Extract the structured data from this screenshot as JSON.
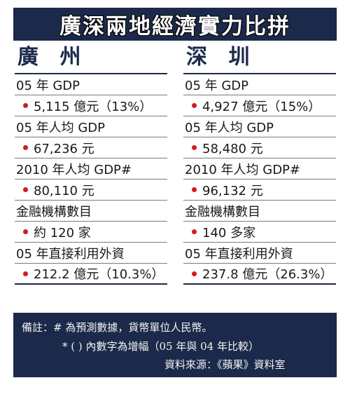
{
  "title": "廣深兩地經濟實力比拼",
  "columns": [
    {
      "city": "廣 州",
      "rows": [
        {
          "label": "05 年 GDP",
          "value": "5,115 億元（13%）"
        },
        {
          "label": "05 年人均 GDP",
          "value": "67,236 元"
        },
        {
          "label": "2010 年人均 GDP#",
          "value": "80,110 元"
        },
        {
          "label": "金融機構數目",
          "value": "約 120 家"
        },
        {
          "label": "05 年直接利用外資",
          "value": "212.2 億元（10.3%）"
        }
      ]
    },
    {
      "city": "深 圳",
      "rows": [
        {
          "label": "05 年 GDP",
          "value": "4,927 億元（15%）"
        },
        {
          "label": "05 年人均 GDP",
          "value": "58,480 元"
        },
        {
          "label": "2010 年人均 GDP#",
          "value": "96,132 元"
        },
        {
          "label": "金融機構數目",
          "value": "140 多家"
        },
        {
          "label": "05 年直接利用外資",
          "value": "237.8 億元（26.3%）"
        }
      ]
    }
  ],
  "notes": {
    "line1": "備註：# 為預測數據，貨幣單位人民幣。",
    "line2": "* ( ) 內數字為增幅（05 年與 04 年比較）",
    "source": "資料來源：《蘋果》資料室"
  }
}
